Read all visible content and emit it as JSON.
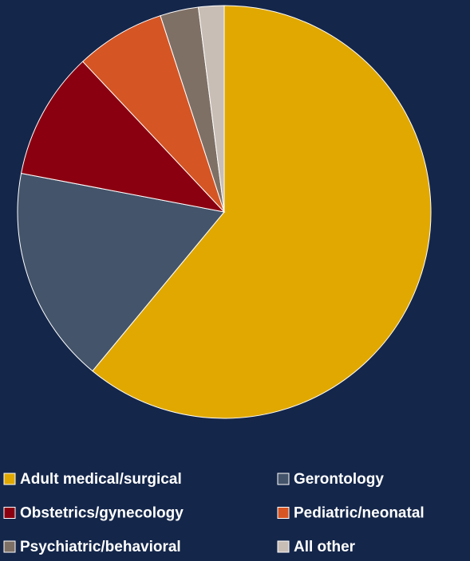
{
  "chart_data": {
    "type": "pie",
    "categories": [
      "Adult medical/surgical",
      "Gerontology",
      "Obstetrics/gynecology",
      "Pediatric/neonatal",
      "Psychiatric/behavioral",
      "All other"
    ],
    "values": [
      61,
      17,
      10,
      7,
      3,
      2
    ],
    "colors": [
      "#e0a800",
      "#44546a",
      "#8b0010",
      "#d55524",
      "#7f7066",
      "#c8beb5"
    ],
    "legend": "bottom"
  }
}
